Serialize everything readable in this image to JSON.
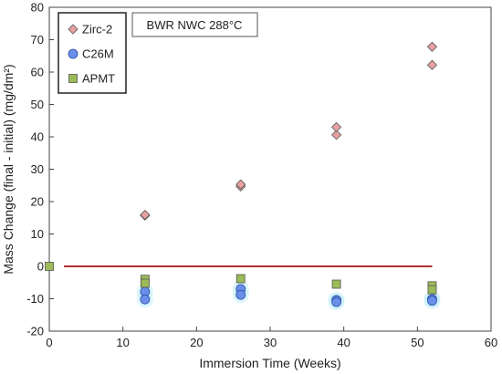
{
  "chart_data": {
    "type": "scatter",
    "title": "",
    "annotation": "BWR NWC 288°C",
    "xlabel": "Immersion Time (Weeks)",
    "ylabel": "Mass Change (final - initial) (mg/dm²)",
    "xlim": [
      0,
      60
    ],
    "ylim": [
      -20,
      80
    ],
    "xticks": [
      0,
      10,
      20,
      30,
      40,
      50,
      60
    ],
    "yticks": [
      -20,
      -10,
      0,
      10,
      20,
      30,
      40,
      50,
      60,
      70,
      80
    ],
    "grid": false,
    "legend_position": "top-left",
    "reference_line": {
      "y": 0,
      "x_start": 2,
      "x_end": 52,
      "color": "#b03030"
    },
    "series": [
      {
        "name": "Zirc-2",
        "marker": "diamond",
        "color": "#e8a0a0",
        "points": [
          [
            13,
            15.7
          ],
          [
            13,
            15.9
          ],
          [
            26,
            24.7
          ],
          [
            26,
            25.3
          ],
          [
            39,
            40.6
          ],
          [
            39,
            43.0
          ],
          [
            52,
            62.2
          ],
          [
            52,
            67.8
          ]
        ]
      },
      {
        "name": "C26M",
        "marker": "circle",
        "color": "#29a9d6",
        "points": [
          [
            13,
            -7.8
          ],
          [
            13,
            -10.2
          ],
          [
            26,
            -7.0
          ],
          [
            26,
            -8.8
          ],
          [
            39,
            -10.4
          ],
          [
            39,
            -11.0
          ],
          [
            52,
            -10.1
          ],
          [
            52,
            -10.6
          ]
        ]
      },
      {
        "name": "APMT",
        "marker": "square",
        "color": "#9bbb59",
        "points": [
          [
            0,
            0
          ],
          [
            13,
            -4.0
          ],
          [
            13,
            -5.2
          ],
          [
            26,
            -3.8
          ],
          [
            39,
            -5.5
          ],
          [
            52,
            -6.0
          ],
          [
            52,
            -7.2
          ]
        ]
      }
    ]
  }
}
